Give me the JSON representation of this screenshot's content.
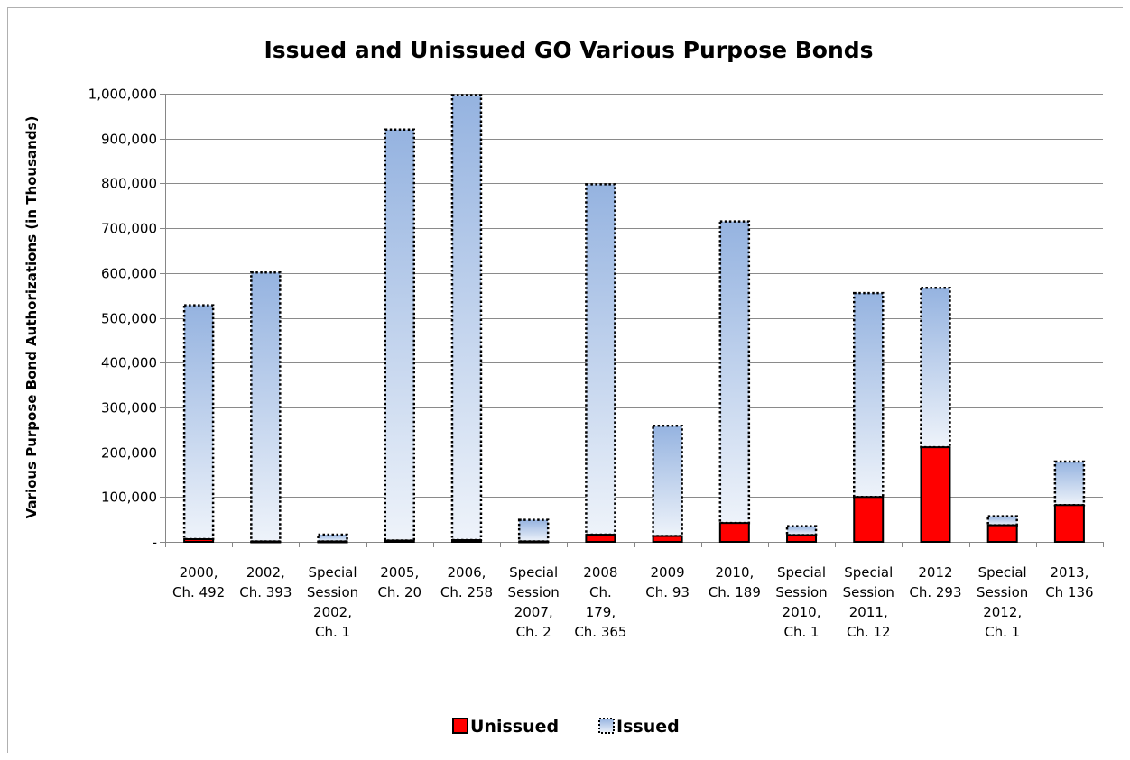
{
  "chart_data": {
    "type": "bar",
    "stacked": true,
    "title": "Issued and Unissued GO Various Purpose Bonds",
    "xlabel": "",
    "ylabel": "Various Purpose Bond Authorizations (in Thousands)",
    "ylim": [
      0,
      1000000
    ],
    "yticks": [
      "-",
      "100,000",
      "200,000",
      "300,000",
      "400,000",
      "500,000",
      "600,000",
      "700,000",
      "800,000",
      "900,000",
      "1,000,000"
    ],
    "grid": true,
    "legend_placement": "bottom",
    "categories": [
      [
        "2000,",
        "Ch. 492"
      ],
      [
        "2002,",
        "Ch. 393"
      ],
      [
        "Special",
        "Session",
        "2002,",
        "Ch. 1"
      ],
      [
        "2005,",
        "Ch. 20"
      ],
      [
        "2006,",
        "Ch. 258"
      ],
      [
        "Special",
        "Session",
        "2007,",
        "Ch. 2"
      ],
      [
        "2008",
        "Ch.",
        "179,",
        "Ch. 365"
      ],
      [
        "2009",
        "Ch. 93"
      ],
      [
        "2010,",
        "Ch. 189"
      ],
      [
        "Special",
        "Session",
        "2010,",
        "Ch. 1"
      ],
      [
        "Special",
        "Session",
        "2011,",
        "Ch. 12"
      ],
      [
        "2012",
        "Ch. 293"
      ],
      [
        "Special",
        "Session",
        "2012,",
        "Ch. 1"
      ],
      [
        "2013,",
        "Ch 136"
      ]
    ],
    "series": [
      {
        "name": "Unissued",
        "color": "#ff0000",
        "values": [
          6000,
          1000,
          1000,
          3000,
          4000,
          1000,
          16000,
          13000,
          42000,
          15000,
          100000,
          211000,
          37000,
          82000
        ]
      },
      {
        "name": "Issued",
        "color": "#95b3d7",
        "values": [
          522000,
          600000,
          15000,
          917000,
          993000,
          48000,
          782000,
          246000,
          673000,
          20000,
          455000,
          356000,
          20000,
          97000
        ]
      }
    ]
  }
}
